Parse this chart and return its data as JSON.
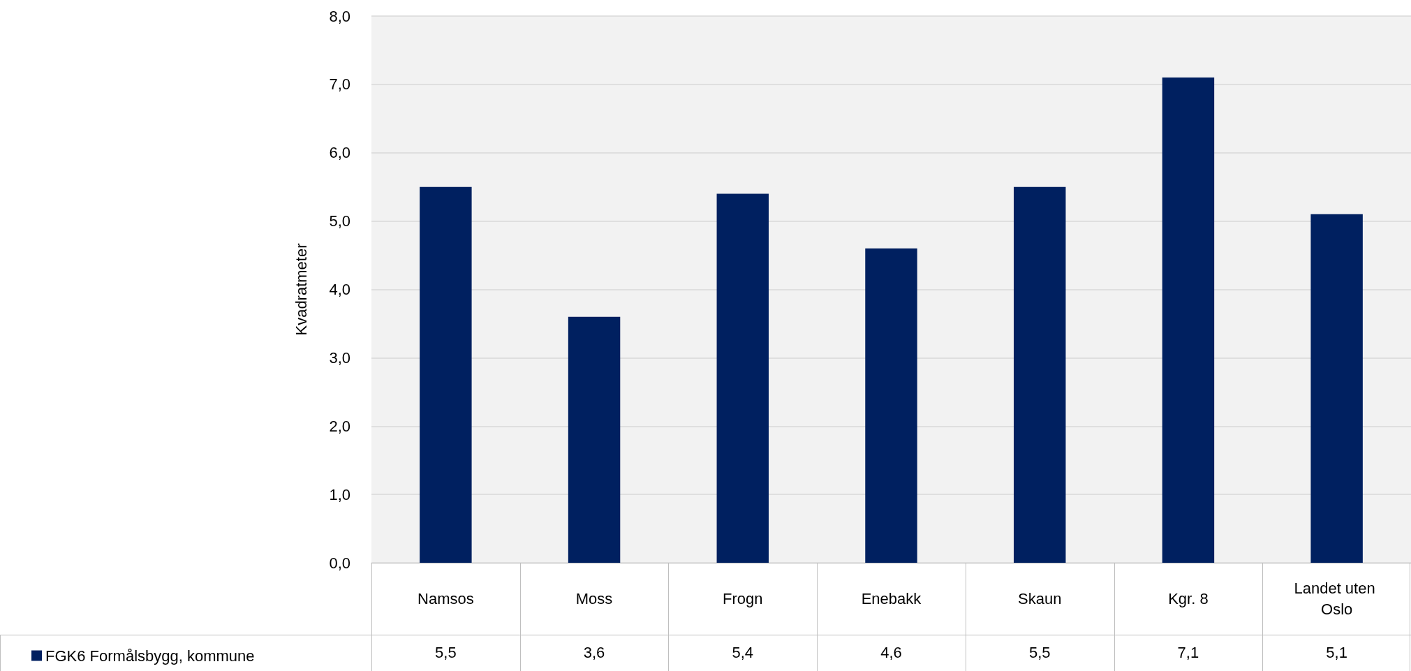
{
  "chart_data": {
    "type": "bar",
    "ylabel": "Kvadratmeter",
    "categories": [
      "Namsos",
      "Moss",
      "Frogn",
      "Enebakk",
      "Skaun",
      "Kgr. 8",
      "Landet uten Oslo"
    ],
    "series": [
      {
        "name": "FGK6 Formålsbygg, kommune",
        "color": "#002060",
        "values": [
          5.5,
          3.6,
          5.4,
          4.6,
          5.5,
          7.1,
          5.1
        ]
      }
    ],
    "ylim": [
      0,
      8
    ],
    "yticks": [
      {
        "value": 0,
        "label": "0,0"
      },
      {
        "value": 1,
        "label": "1,0"
      },
      {
        "value": 2,
        "label": "2,0"
      },
      {
        "value": 3,
        "label": "3,0"
      },
      {
        "value": 4,
        "label": "4,0"
      },
      {
        "value": 5,
        "label": "5,0"
      },
      {
        "value": 6,
        "label": "6,0"
      },
      {
        "value": 7,
        "label": "7,0"
      },
      {
        "value": 8,
        "label": "8,0"
      }
    ],
    "grid": "y",
    "legend": "bottom left",
    "value_labels": [
      "5,5",
      "3,6",
      "5,4",
      "4,6",
      "5,5",
      "7,1",
      "5,1"
    ]
  }
}
